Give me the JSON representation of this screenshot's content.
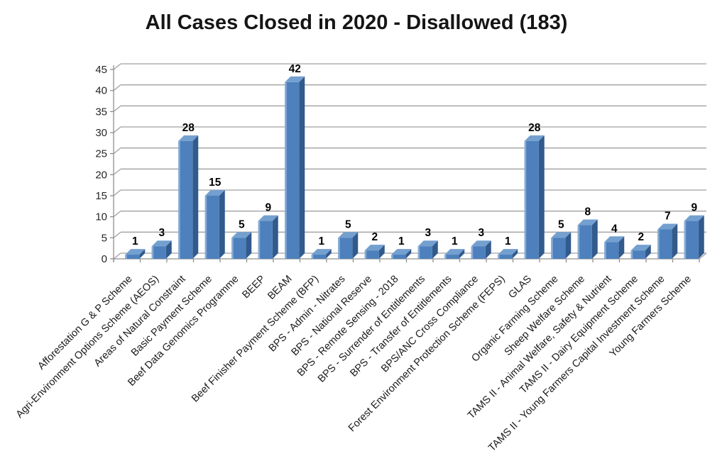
{
  "title": "All Cases Closed in 2020 - Disallowed (183)",
  "chart_data": {
    "type": "bar",
    "title": "All Cases Closed in 2020 - Disallowed (183)",
    "total_cases": 183,
    "xlabel": "",
    "ylabel": "",
    "ylim": [
      0,
      45
    ],
    "yticks": [
      0,
      5,
      10,
      15,
      20,
      25,
      30,
      35,
      40,
      45
    ],
    "grid": true,
    "legend": "none",
    "style": "3d-bar",
    "categories": [
      "Afforestation G & P Scheme",
      "Agri-Environment Options Scheme (AEOS)",
      "Areas of Natural Constraint",
      "Basic Payment Scheme",
      "Beef Data Genomics Programme",
      "BEEP",
      "BEAM",
      "Beef Finisher Payment Scheme (BFP)",
      "BPS - Admin - Nitrates",
      "BPS - National Reserve",
      "BPS - Remote Sensing - 2018",
      "BPS - Surrender of Entitlements",
      "BPS - Transfer of Entitlements",
      "BPS/ANC Cross Compliance",
      "Forest Environment Protection Scheme (FEPS)",
      "GLAS",
      "Organic Farming Scheme",
      "Sheep Welfare Scheme",
      "TAMS II - Animal Welfare, Safety & Nutrient",
      "TAMS II - Dairy Equipment Scheme",
      "TAMS II - Young Farmers Capital Investment Scheme",
      "Young Farmers Scheme"
    ],
    "values": [
      1,
      3,
      28,
      15,
      5,
      9,
      42,
      1,
      5,
      2,
      1,
      3,
      1,
      3,
      1,
      28,
      5,
      8,
      4,
      2,
      7,
      9
    ],
    "colors": {
      "bar_front": "#4d80bc",
      "bar_side": "#315a8d",
      "bar_top": "#74a0d0",
      "bar_highlight": "#87abd6",
      "gridline": "#a0a0a0",
      "axis": "#8f8f8f",
      "tick_label": "#262626",
      "category_label": "#1a1a1a",
      "value_label": "#000000"
    }
  }
}
